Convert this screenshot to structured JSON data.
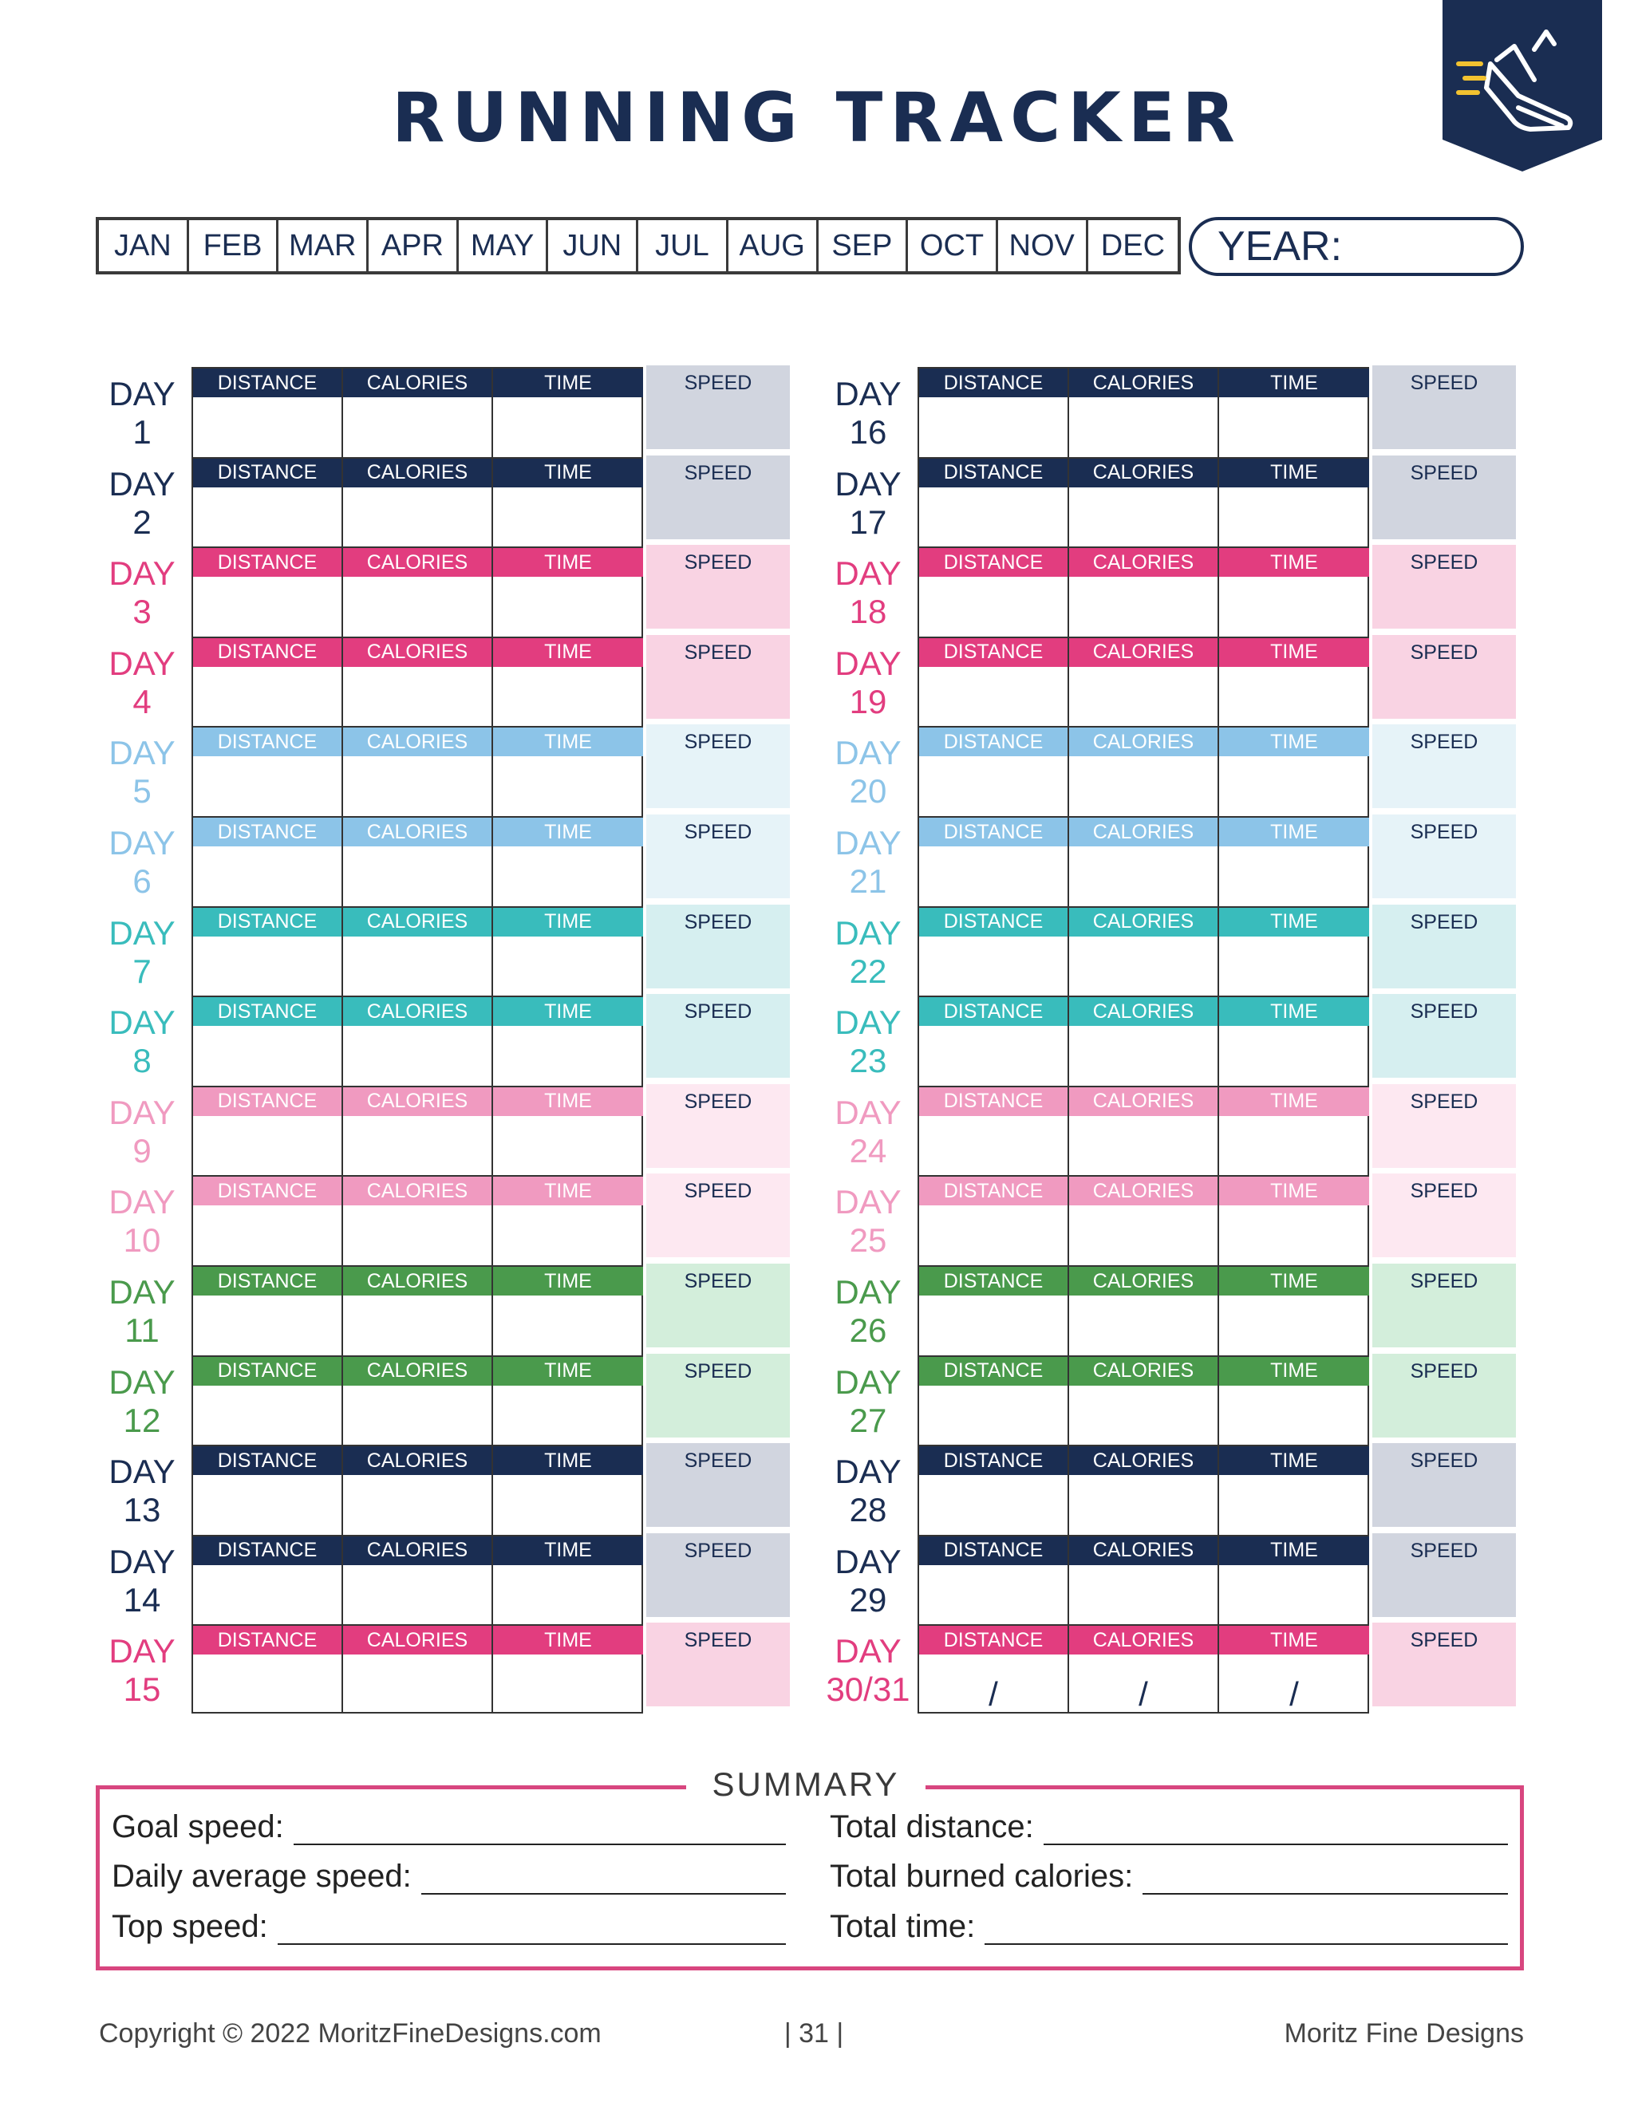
{
  "title": "RUNNING TRACKER",
  "badge_icon": "running-shoe-icon",
  "months": [
    "JAN",
    "FEB",
    "MAR",
    "APR",
    "MAY",
    "JUN",
    "JUL",
    "AUG",
    "SEP",
    "OCT",
    "NOV",
    "DEC"
  ],
  "year_label": "YEAR:",
  "column_headers": {
    "distance": "DISTANCE",
    "calories": "CALORIES",
    "time": "TIME",
    "speed": "SPEED"
  },
  "day_word": "DAY",
  "slash": "/",
  "days": [
    {
      "num": "1",
      "color": "#1a2d52"
    },
    {
      "num": "2",
      "color": "#1a2d52"
    },
    {
      "num": "3",
      "color": "#e23d7f"
    },
    {
      "num": "4",
      "color": "#e23d7f"
    },
    {
      "num": "5",
      "color": "#8cc4e8"
    },
    {
      "num": "6",
      "color": "#8cc4e8"
    },
    {
      "num": "7",
      "color": "#39bcbc"
    },
    {
      "num": "8",
      "color": "#39bcbc"
    },
    {
      "num": "9",
      "color": "#f09ac0"
    },
    {
      "num": "10",
      "color": "#f09ac0"
    },
    {
      "num": "11",
      "color": "#4a9a4c"
    },
    {
      "num": "12",
      "color": "#4a9a4c"
    },
    {
      "num": "13",
      "color": "#1a2d52"
    },
    {
      "num": "14",
      "color": "#1a2d52"
    },
    {
      "num": "15",
      "color": "#e23d7f"
    },
    {
      "num": "16",
      "color": "#1a2d52"
    },
    {
      "num": "17",
      "color": "#1a2d52"
    },
    {
      "num": "18",
      "color": "#e23d7f"
    },
    {
      "num": "19",
      "color": "#e23d7f"
    },
    {
      "num": "20",
      "color": "#8cc4e8"
    },
    {
      "num": "21",
      "color": "#8cc4e8"
    },
    {
      "num": "22",
      "color": "#39bcbc"
    },
    {
      "num": "23",
      "color": "#39bcbc"
    },
    {
      "num": "24",
      "color": "#f09ac0"
    },
    {
      "num": "25",
      "color": "#f09ac0"
    },
    {
      "num": "26",
      "color": "#4a9a4c"
    },
    {
      "num": "27",
      "color": "#4a9a4c"
    },
    {
      "num": "28",
      "color": "#1a2d52"
    },
    {
      "num": "29",
      "color": "#1a2d52"
    },
    {
      "num": "30/31",
      "color": "#e23d7f"
    }
  ],
  "speed_fills": [
    "#d1d5df",
    "#d1d5df",
    "#f9d3e3",
    "#f9d3e3",
    "#e6f3f8",
    "#e6f3f8",
    "#d6eff0",
    "#d6eff0",
    "#fde8f1",
    "#fde8f1",
    "#d3eedb",
    "#d3eedb",
    "#d1d5df",
    "#d1d5df",
    "#f9d3e3",
    "#d1d5df",
    "#d1d5df",
    "#f9d3e3",
    "#f9d3e3",
    "#e6f3f8",
    "#e6f3f8",
    "#d6eff0",
    "#d6eff0",
    "#fde8f1",
    "#fde8f1",
    "#d3eedb",
    "#d3eedb",
    "#d1d5df",
    "#d1d5df",
    "#f9d3e3"
  ],
  "summary": {
    "title": "SUMMARY",
    "goal_speed": "Goal speed:",
    "daily_average_speed": "Daily average speed:",
    "top_speed": "Top speed:",
    "total_distance": "Total distance:",
    "total_burned_calories": "Total burned calories:",
    "total_time": "Total time:"
  },
  "footer": {
    "copyright": "Copyright © 2022 MoritzFineDesigns.com",
    "page": "| 31 |",
    "brand": "Moritz Fine Designs"
  },
  "colors": {
    "navy": "#1a2d52",
    "pink": "#e23d7f",
    "summary_border": "#d8467f"
  }
}
